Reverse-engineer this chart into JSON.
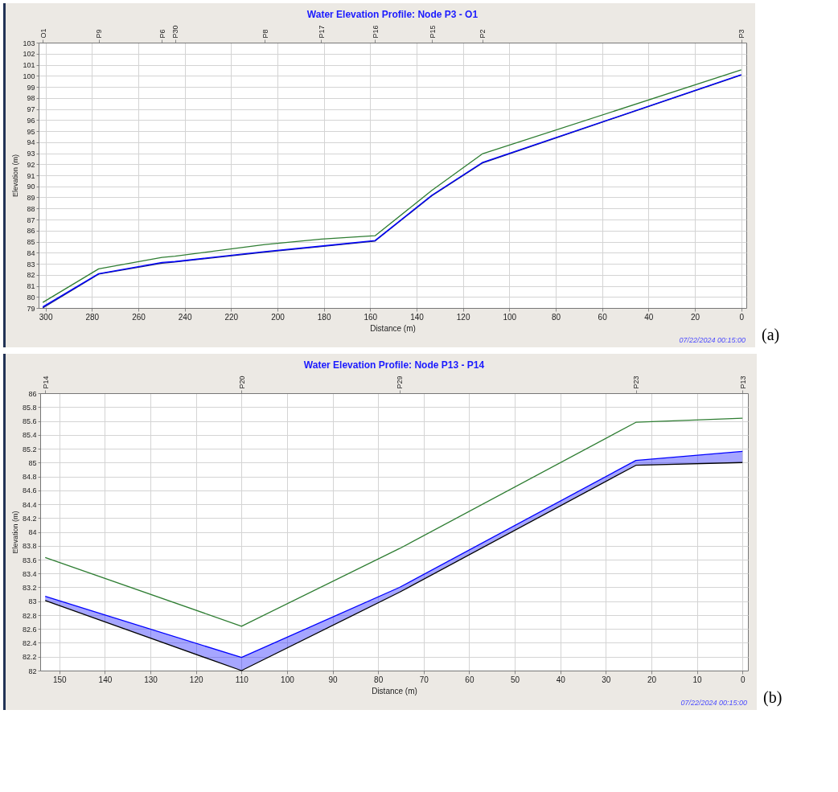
{
  "chart_data": [
    {
      "type": "line",
      "title": "Water Elevation Profile: Node P3 - O1",
      "xlabel": "Distance (m)",
      "ylabel": "Elevation (m)",
      "x": [
        301.2,
        277.1,
        249.8,
        244.2,
        205.4,
        181.1,
        157.9,
        133.4,
        111.7,
        0
      ],
      "series": [
        {
          "color": "#1a237e",
          "values": [
            79.0,
            82.06,
            83.05,
            83.16,
            84.04,
            84.55,
            85.05,
            89.15,
            92.1,
            100.07
          ]
        },
        {
          "color": "#0000ff",
          "values": [
            79.1,
            82.1,
            83.12,
            83.2,
            84.1,
            84.6,
            85.1,
            89.2,
            92.15,
            100.1
          ],
          "lower": [
            79.0,
            82.06,
            83.05,
            83.16,
            84.04,
            84.55,
            85.05,
            89.15,
            92.1,
            100.07
          ],
          "upper": [
            79.1,
            82.1,
            83.12,
            83.2,
            84.1,
            84.6,
            85.1,
            89.2,
            92.15,
            100.1
          ]
        },
        {
          "color": "#2e7d32",
          "values": [
            79.5,
            82.54,
            83.57,
            83.68,
            84.74,
            85.22,
            85.53,
            89.63,
            92.93,
            100.53
          ]
        }
      ],
      "xlim": [
        303,
        -2.2
      ],
      "xticks": [
        300,
        280,
        260,
        240,
        220,
        200,
        180,
        160,
        140,
        120,
        100,
        80,
        60,
        40,
        20,
        0
      ],
      "ylim": [
        79,
        103
      ],
      "yticks": [
        79,
        80,
        81,
        82,
        83,
        84,
        85,
        86,
        87,
        88,
        89,
        90,
        91,
        92,
        93,
        94,
        95,
        96,
        97,
        98,
        99,
        100,
        101,
        102,
        103
      ],
      "grid": true,
      "annotations": [
        "07/22/2024 00:15:00",
        "(a)",
        "O1",
        "P9",
        "P6",
        "P30",
        "P8",
        "P17",
        "P16",
        "P15",
        "P2",
        "P3"
      ]
    },
    {
      "type": "line",
      "title": "Water Elevation Profile: Node P13 - P14",
      "xlabel": "Distance (m)",
      "ylabel": "Elevation (m)",
      "x": [
        153.1,
        110,
        75.3,
        23.4,
        0
      ],
      "series": [
        {
          "color": "#000000",
          "values": [
            83.01,
            82.0,
            83.13,
            84.96,
            85.0
          ]
        },
        {
          "color": "#0000ff",
          "values": [
            83.07,
            82.19,
            83.2,
            85.03,
            85.16
          ],
          "lower": [
            83.01,
            82.0,
            83.13,
            84.96,
            85.0
          ],
          "upper": [
            83.07,
            82.19,
            83.2,
            85.03,
            85.16
          ]
        },
        {
          "color": "#2e7d32",
          "values": [
            83.63,
            82.64,
            83.76,
            85.58,
            85.64
          ]
        }
      ],
      "xlim": [
        154.2,
        -1.2
      ],
      "xticks": [
        150,
        140,
        130,
        120,
        110,
        100,
        90,
        80,
        70,
        60,
        50,
        40,
        30,
        20,
        10,
        0
      ],
      "ylim": [
        82,
        86
      ],
      "yticks": [
        82,
        82.2,
        82.4,
        82.6,
        82.8,
        83,
        83.2,
        83.4,
        83.6,
        83.8,
        84,
        84.2,
        84.4,
        84.6,
        84.8,
        85,
        85.2,
        85.4,
        85.6,
        85.8,
        86
      ],
      "grid": true,
      "annotations": [
        "07/22/2024 00:15:00",
        "(b)",
        "P14",
        "P20",
        "P29",
        "P23",
        "P13"
      ]
    }
  ]
}
